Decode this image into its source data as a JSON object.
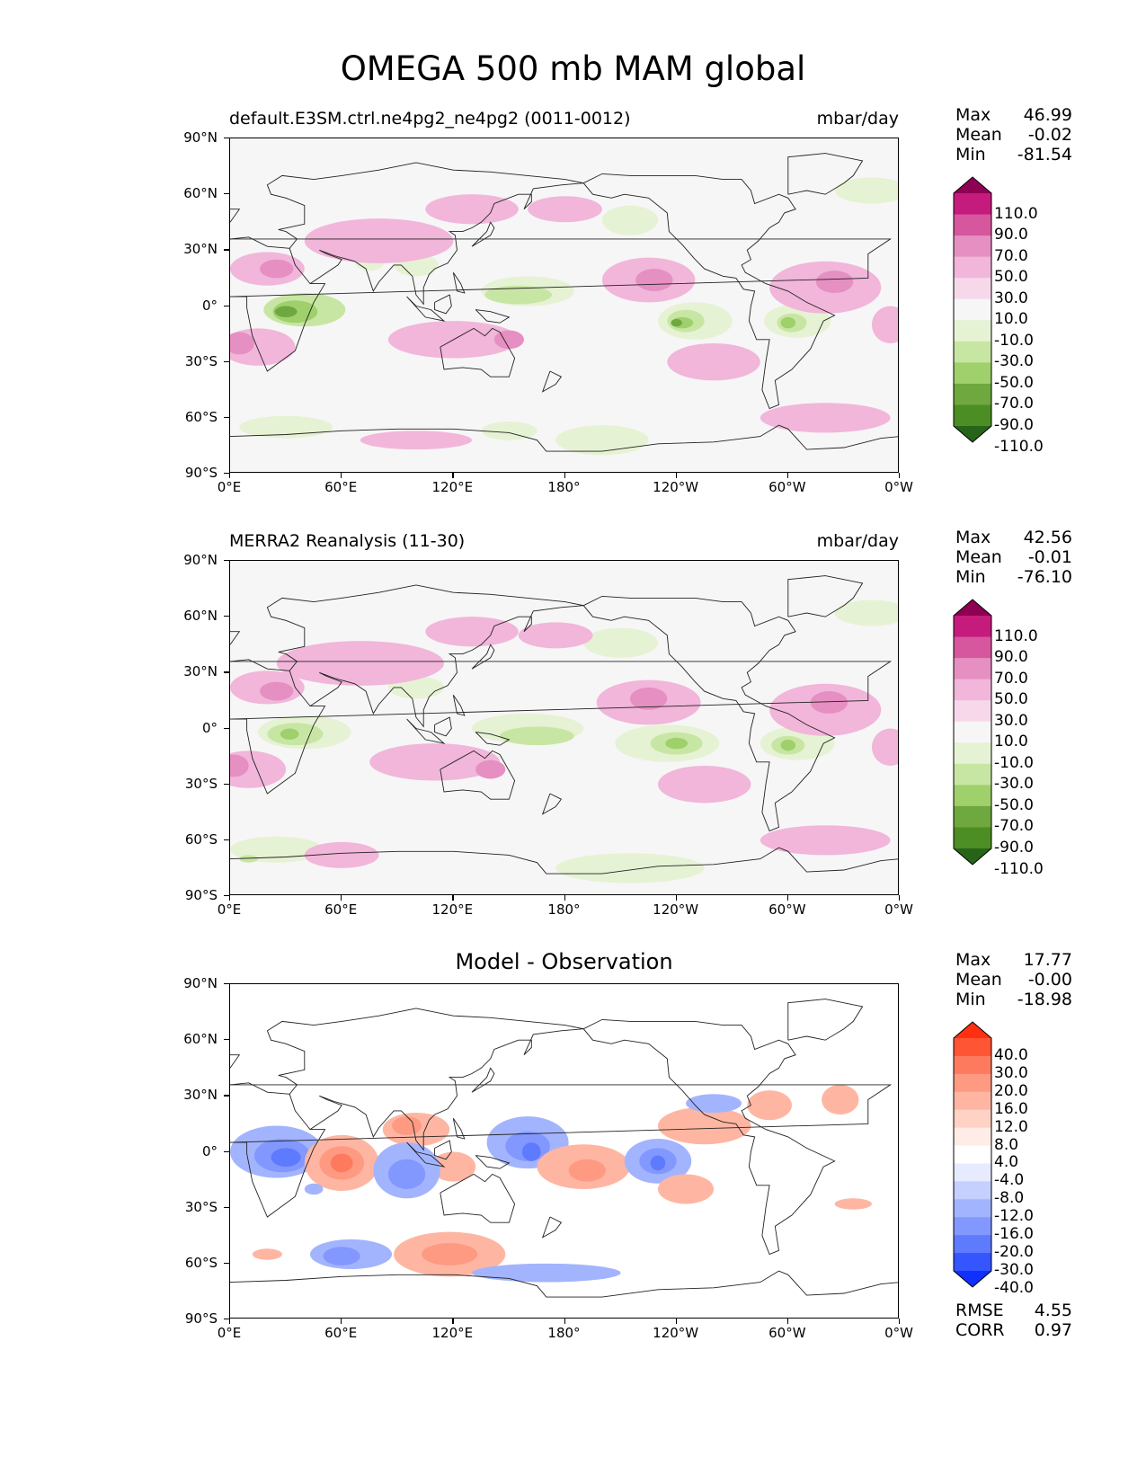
{
  "figure": {
    "title": "OMEGA 500 mb MAM global"
  },
  "axes": {
    "lat_ticks": [
      "90°N",
      "60°N",
      "30°N",
      "0°",
      "30°S",
      "60°S",
      "90°S"
    ],
    "lon_ticks": [
      "0°E",
      "60°E",
      "120°E",
      "180°",
      "120°W",
      "60°W",
      "0°W"
    ]
  },
  "panels": [
    {
      "id": "model",
      "left_title": "default.E3SM.ctrl.ne4pg2_ne4pg2 (0011-0012)",
      "right_title": "mbar/day",
      "center_title": "",
      "stats": [
        {
          "label": "Max",
          "value": "46.99"
        },
        {
          "label": "Mean",
          "value": "-0.02"
        },
        {
          "label": "Min",
          "value": "-81.54"
        }
      ],
      "colorbar": {
        "colormap": "PiYG_r",
        "labels": [
          "110.0",
          "90.0",
          "70.0",
          "50.0",
          "30.0",
          "10.0",
          "-10.0",
          "-30.0",
          "-50.0",
          "-70.0",
          "-90.0",
          "-110.0"
        ],
        "colors": [
          "#8e0152",
          "#c51b7d",
          "#d6579d",
          "#e68fc2",
          "#f1b6da",
          "#f7d8ea",
          "#f6f6f6",
          "#e6f2d4",
          "#c8e6a3",
          "#9fd06b",
          "#6ea83f",
          "#4d8e24",
          "#276419"
        ]
      }
    },
    {
      "id": "obs",
      "left_title": "MERRA2 Reanalysis (11-30)",
      "right_title": "mbar/day",
      "center_title": "",
      "stats": [
        {
          "label": "Max",
          "value": "42.56"
        },
        {
          "label": "Mean",
          "value": "-0.01"
        },
        {
          "label": "Min",
          "value": "-76.10"
        }
      ],
      "colorbar": {
        "colormap": "PiYG_r",
        "labels": [
          "110.0",
          "90.0",
          "70.0",
          "50.0",
          "30.0",
          "10.0",
          "-10.0",
          "-30.0",
          "-50.0",
          "-70.0",
          "-90.0",
          "-110.0"
        ],
        "colors": [
          "#8e0152",
          "#c51b7d",
          "#d6579d",
          "#e68fc2",
          "#f1b6da",
          "#f7d8ea",
          "#f6f6f6",
          "#e6f2d4",
          "#c8e6a3",
          "#9fd06b",
          "#6ea83f",
          "#4d8e24",
          "#276419"
        ]
      }
    },
    {
      "id": "diff",
      "left_title": "",
      "right_title": "",
      "center_title": "Model - Observation",
      "stats": [
        {
          "label": "Max",
          "value": "17.77"
        },
        {
          "label": "Mean",
          "value": "-0.00"
        },
        {
          "label": "Min",
          "value": "-18.98"
        }
      ],
      "colorbar": {
        "colormap": "bwr",
        "labels": [
          "40.0",
          "30.0",
          "20.0",
          "16.0",
          "12.0",
          "8.0",
          "4.0",
          "-4.0",
          "-8.0",
          "-12.0",
          "-16.0",
          "-20.0",
          "-30.0",
          "-40.0"
        ],
        "colors": [
          "#ff3010",
          "#fe5535",
          "#fe7a5e",
          "#fe9a82",
          "#feb6a3",
          "#fed2c5",
          "#ffece6",
          "#ffffff",
          "#e6ebff",
          "#c5d0fe",
          "#a3b4fe",
          "#8298fe",
          "#5e7bfe",
          "#3555fe",
          "#1030ff"
        ],
        "bottom_stats": [
          {
            "label": "RMSE",
            "value": "4.55"
          },
          {
            "label": "CORR",
            "value": "0.97"
          }
        ]
      }
    }
  ]
}
